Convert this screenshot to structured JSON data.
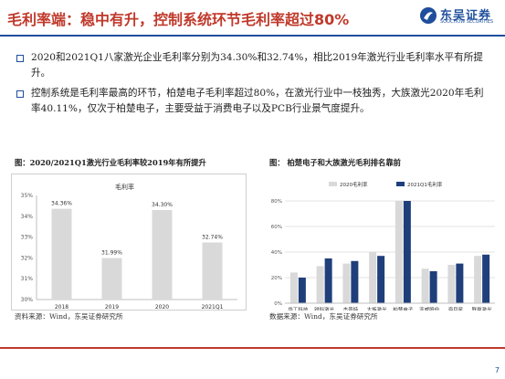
{
  "header": {
    "title": "毛利率端：稳中有升，控制系统环节毛利率超过80%",
    "logo_cn": "东吴证券",
    "logo_en": "SOOCHOW SECURITIES",
    "accent_red": "#c0392b",
    "brand_blue": "#1f4e9c"
  },
  "bullets": [
    {
      "text": "2020和2021Q1八家激光企业毛利率分别为34.30%和32.74%，相比2019年激光行业毛利率水平有所提升。"
    },
    {
      "text": "控制系统是毛利率最高的环节，柏楚电子毛利率超过80%，在激光行业中一枝独秀，大族激光2020年毛利率40.11%，仅次于柏楚电子，主要受益于消费电子以及PCB行业景气度提升。"
    }
  ],
  "left_caption": "图：2020/2021Q1激光行业毛利率较2019年有所提升",
  "right_caption": "图：    柏楚电子和大族激光毛利排名靠前",
  "left_source": "资料来源：Wind，东吴证券研究所",
  "right_source": "数据来源：Wind，东吴证券研究所",
  "page_number": "7",
  "chart_data": [
    {
      "type": "bar",
      "title": "毛利率",
      "categories": [
        "2018",
        "2019",
        "2020",
        "2021Q1"
      ],
      "values": [
        34.36,
        31.99,
        34.3,
        32.74
      ],
      "data_labels": [
        "34.36%",
        "31.99%",
        "34.30%",
        "32.74%"
      ],
      "ylim": [
        30,
        35
      ],
      "yticks": [
        "30%",
        "31%",
        "32%",
        "33%",
        "34%",
        "35%"
      ],
      "colors": [
        "#d9d9d9"
      ],
      "grid": false
    },
    {
      "type": "bar",
      "categories": [
        "华工科技",
        "锐科激光",
        "杰普特",
        "大族激光",
        "柏楚电子",
        "亚威股份",
        "海目星",
        "联赢激光"
      ],
      "series": [
        {
          "name": "2020毛利率",
          "values": [
            24,
            29,
            31,
            40.11,
            80,
            27,
            30,
            37
          ],
          "color": "#d9d9d9"
        },
        {
          "name": "2021Q1毛利率",
          "values": [
            20,
            35,
            33,
            37,
            80,
            25,
            31,
            38
          ],
          "color": "#1f3f7a"
        }
      ],
      "ylim": [
        0,
        80
      ],
      "yticks": [
        "0%",
        "20%",
        "40%",
        "60%",
        "80%"
      ],
      "legend": "top",
      "grid": true
    }
  ]
}
